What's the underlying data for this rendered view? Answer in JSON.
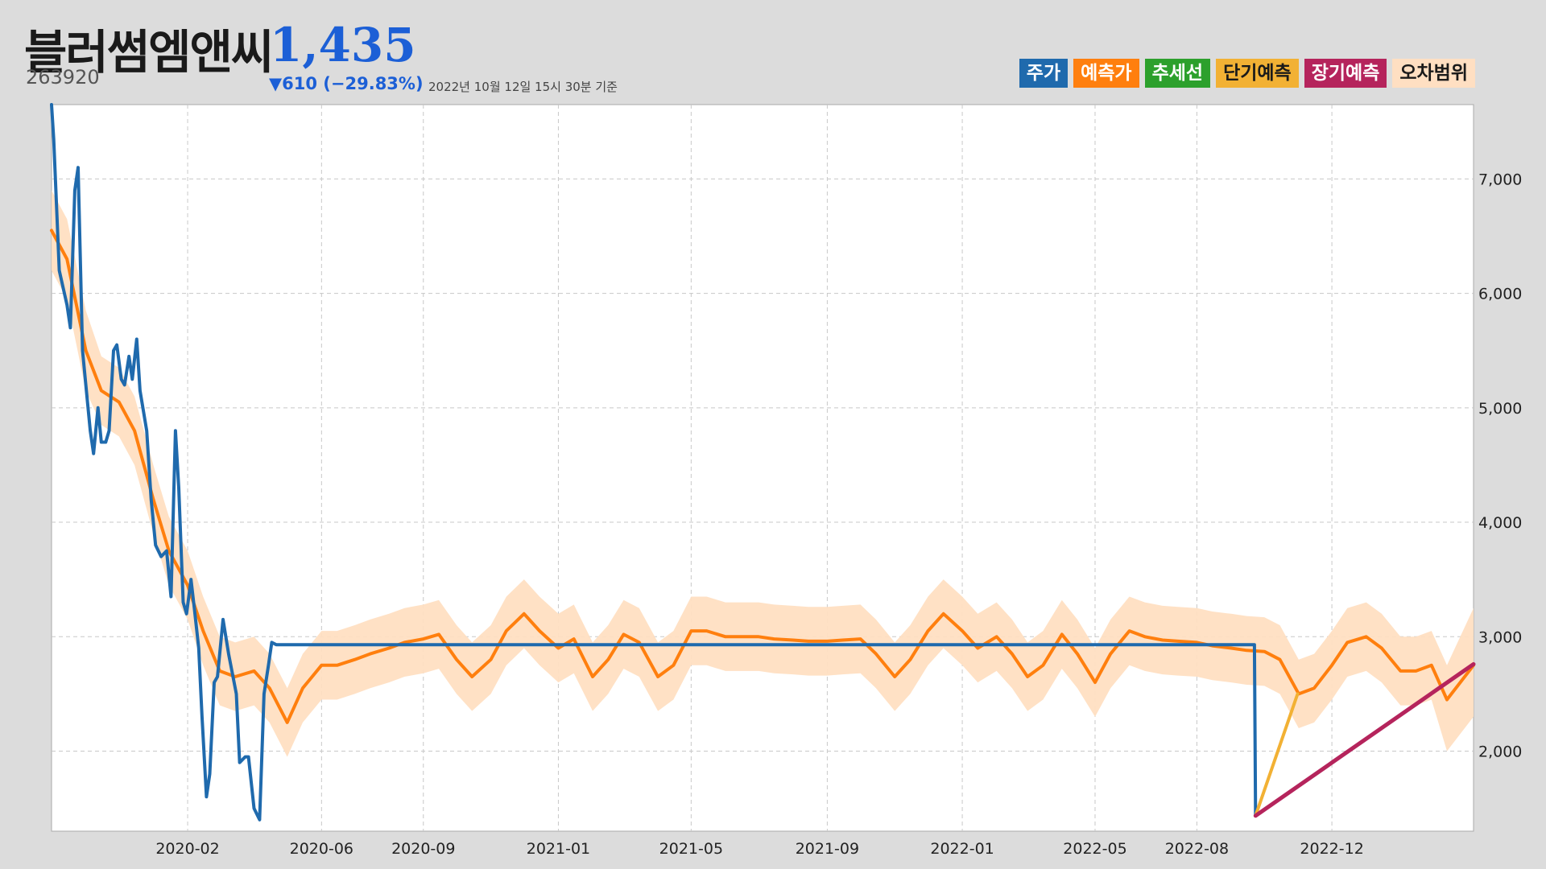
{
  "header": {
    "name": "블러썸엠앤씨",
    "price": "1,435",
    "code": "263920",
    "change": "▼610 (−29.83%)",
    "asof": "2022년 10월 12일 15시 30분 기준"
  },
  "legend": [
    {
      "label": "주가",
      "color": "#1f6aad",
      "text_color": "#ffffff"
    },
    {
      "label": "예측가",
      "color": "#ff7f0e",
      "text_color": "#ffffff"
    },
    {
      "label": "추세선",
      "color": "#2ca02c",
      "text_color": "#ffffff"
    },
    {
      "label": "단기예측",
      "color": "#f2b134",
      "text_color": "#1a1a1a"
    },
    {
      "label": "장기예측",
      "color": "#b5245c",
      "text_color": "#ffffff"
    },
    {
      "label": "오차범위",
      "color": "#ffdfc2",
      "text_color": "#1a1a1a"
    }
  ],
  "chart_data": {
    "type": "line",
    "x_ticks": [
      "2020-02",
      "2020-06",
      "2020-09",
      "2021-01",
      "2021-05",
      "2021-09",
      "2022-01",
      "2022-05",
      "2022-08",
      "2022-12"
    ],
    "y_ticks": [
      "2,000",
      "3,000",
      "4,000",
      "5,000",
      "6,000",
      "7,000"
    ],
    "y_tick_values": [
      2000,
      3000,
      4000,
      5000,
      6000,
      7000
    ],
    "ylim": [
      1300,
      7650
    ],
    "xlim": [
      "2019-10-01",
      "2023-04-08"
    ],
    "grid": true,
    "series": [
      {
        "name": "주가",
        "color": "#1f6aad",
        "x": [
          "2019-10-01",
          "2019-10-03",
          "2019-10-08",
          "2019-10-15",
          "2019-10-18",
          "2019-10-22",
          "2019-10-25",
          "2019-10-29",
          "2019-11-01",
          "2019-11-05",
          "2019-11-08",
          "2019-11-12",
          "2019-11-15",
          "2019-11-19",
          "2019-11-22",
          "2019-11-26",
          "2019-11-29",
          "2019-12-03",
          "2019-12-06",
          "2019-12-10",
          "2019-12-13",
          "2019-12-17",
          "2019-12-20",
          "2019-12-26",
          "2019-12-30",
          "2020-01-03",
          "2020-01-08",
          "2020-01-13",
          "2020-01-17",
          "2020-01-21",
          "2020-01-24",
          "2020-01-28",
          "2020-01-31",
          "2020-02-04",
          "2020-02-07",
          "2020-02-11",
          "2020-02-14",
          "2020-02-18",
          "2020-02-21",
          "2020-02-25",
          "2020-02-28",
          "2020-03-04",
          "2020-03-09",
          "2020-03-12",
          "2020-03-16",
          "2020-03-19",
          "2020-03-24",
          "2020-03-27",
          "2020-04-01",
          "2020-04-06",
          "2020-04-10",
          "2020-04-14",
          "2020-04-17",
          "2020-04-21",
          "2020-04-24",
          "2020-04-28",
          "2020-05-04",
          "2020-05-08",
          "2020-05-13",
          "2020-05-18",
          "2020-05-21",
          "2020-05-26",
          "2020-05-28",
          "2022-09-22",
          "2022-09-23"
        ],
        "y": [
          7650,
          7350,
          6200,
          5900,
          5700,
          6900,
          7100,
          5500,
          5200,
          4800,
          4600,
          5000,
          4700,
          4700,
          4800,
          5500,
          5550,
          5250,
          5200,
          5450,
          5250,
          5600,
          5150,
          4800,
          4200,
          3800,
          3700,
          3750,
          3350,
          4800,
          4300,
          3300,
          3200,
          3500,
          3250,
          2900,
          2300,
          1600,
          1800,
          2600,
          2650,
          3150,
          2850,
          2700,
          2500,
          1900,
          1950,
          1950,
          1500,
          1400,
          2500,
          2750,
          2950,
          2930,
          2930,
          2930,
          2930,
          2930,
          2930,
          2930,
          2930,
          2930,
          2930,
          2930,
          1435
        ]
      },
      {
        "name": "예측가",
        "color": "#ff7f0e",
        "x": [
          "2019-10-01",
          "2019-10-15",
          "2019-11-01",
          "2019-11-15",
          "2019-12-01",
          "2019-12-15",
          "2020-01-01",
          "2020-01-15",
          "2020-02-01",
          "2020-02-15",
          "2020-03-01",
          "2020-03-15",
          "2020-04-01",
          "2020-04-15",
          "2020-05-01",
          "2020-05-15",
          "2020-06-01",
          "2020-06-15",
          "2020-07-01",
          "2020-07-15",
          "2020-08-01",
          "2020-08-15",
          "2020-09-01",
          "2020-09-15",
          "2020-10-01",
          "2020-10-15",
          "2020-11-01",
          "2020-11-15",
          "2020-12-01",
          "2020-12-15",
          "2021-01-01",
          "2021-01-15",
          "2021-02-01",
          "2021-02-15",
          "2021-03-01",
          "2021-03-15",
          "2021-04-01",
          "2021-04-15",
          "2021-05-01",
          "2021-05-15",
          "2021-06-01",
          "2021-06-15",
          "2021-07-01",
          "2021-07-15",
          "2021-08-01",
          "2021-08-15",
          "2021-09-01",
          "2021-09-15",
          "2021-10-01",
          "2021-10-15",
          "2021-11-01",
          "2021-11-15",
          "2021-12-01",
          "2021-12-15",
          "2022-01-01",
          "2022-01-15",
          "2022-02-01",
          "2022-02-15",
          "2022-03-01",
          "2022-03-15",
          "2022-04-01",
          "2022-04-15",
          "2022-05-01",
          "2022-05-15",
          "2022-06-01",
          "2022-06-15",
          "2022-07-01",
          "2022-07-15",
          "2022-08-01",
          "2022-08-15",
          "2022-09-01",
          "2022-09-15",
          "2022-10-01",
          "2022-10-15",
          "2022-11-01",
          "2022-11-15",
          "2022-12-01",
          "2022-12-15",
          "2023-01-01",
          "2023-01-15",
          "2023-02-01",
          "2023-02-15",
          "2023-03-01",
          "2023-03-15",
          "2023-04-08"
        ],
        "y": [
          6550,
          6300,
          5500,
          5150,
          5050,
          4800,
          4200,
          3750,
          3450,
          3050,
          2700,
          2650,
          2700,
          2550,
          2250,
          2550,
          2750,
          2750,
          2800,
          2850,
          2900,
          2950,
          2980,
          3020,
          2800,
          2650,
          2800,
          3050,
          3200,
          3050,
          2900,
          2980,
          2650,
          2800,
          3020,
          2950,
          2650,
          2750,
          3050,
          3050,
          3000,
          3000,
          3000,
          2980,
          2970,
          2960,
          2960,
          2970,
          2980,
          2850,
          2650,
          2800,
          3050,
          3200,
          3050,
          2900,
          3000,
          2850,
          2650,
          2750,
          3020,
          2850,
          2600,
          2850,
          3050,
          3000,
          2970,
          2960,
          2950,
          2920,
          2900,
          2880,
          2870,
          2800,
          2500,
          2550,
          2750,
          2950,
          3000,
          2900,
          2700,
          2700,
          2750,
          2450,
          2750
        ]
      },
      {
        "name": "단기예측",
        "color": "#f2b134",
        "x": [
          "2022-09-23",
          "2022-10-31"
        ],
        "y": [
          1435,
          2500
        ]
      },
      {
        "name": "장기예측",
        "color": "#b5245c",
        "x": [
          "2022-09-23",
          "2023-04-08"
        ],
        "y": [
          1435,
          2760
        ]
      }
    ],
    "band": {
      "name": "오차범위",
      "color": "#ffdfc2",
      "x": [
        "2019-10-01",
        "2019-10-15",
        "2019-11-01",
        "2019-11-15",
        "2019-12-01",
        "2019-12-15",
        "2020-01-01",
        "2020-01-15",
        "2020-02-01",
        "2020-02-15",
        "2020-03-01",
        "2020-03-15",
        "2020-04-01",
        "2020-04-15",
        "2020-05-01",
        "2020-05-15",
        "2020-06-01",
        "2020-06-15",
        "2020-07-01",
        "2020-07-15",
        "2020-08-01",
        "2020-08-15",
        "2020-09-01",
        "2020-09-15",
        "2020-10-01",
        "2020-10-15",
        "2020-11-01",
        "2020-11-15",
        "2020-12-01",
        "2020-12-15",
        "2021-01-01",
        "2021-01-15",
        "2021-02-01",
        "2021-02-15",
        "2021-03-01",
        "2021-03-15",
        "2021-04-01",
        "2021-04-15",
        "2021-05-01",
        "2021-05-15",
        "2021-06-01",
        "2021-06-15",
        "2021-07-01",
        "2021-07-15",
        "2021-08-01",
        "2021-08-15",
        "2021-09-01",
        "2021-09-15",
        "2021-10-01",
        "2021-10-15",
        "2021-11-01",
        "2021-11-15",
        "2021-12-01",
        "2021-12-15",
        "2022-01-01",
        "2022-01-15",
        "2022-02-01",
        "2022-02-15",
        "2022-03-01",
        "2022-03-15",
        "2022-04-01",
        "2022-04-15",
        "2022-05-01",
        "2022-05-15",
        "2022-06-01",
        "2022-06-15",
        "2022-07-01",
        "2022-07-15",
        "2022-08-01",
        "2022-08-15",
        "2022-09-01",
        "2022-09-15",
        "2022-10-01",
        "2022-10-15",
        "2022-11-01",
        "2022-11-15",
        "2022-12-01",
        "2022-12-15",
        "2023-01-01",
        "2023-01-15",
        "2023-02-01",
        "2023-02-15",
        "2023-03-01",
        "2023-03-15",
        "2023-04-08"
      ],
      "upper": [
        6900,
        6650,
        5850,
        5450,
        5350,
        5100,
        4500,
        4050,
        3750,
        3350,
        3000,
        2950,
        3000,
        2850,
        2550,
        2850,
        3050,
        3050,
        3100,
        3150,
        3200,
        3250,
        3280,
        3320,
        3100,
        2950,
        3100,
        3350,
        3500,
        3350,
        3200,
        3280,
        2950,
        3100,
        3320,
        3250,
        2950,
        3050,
        3350,
        3350,
        3300,
        3300,
        3300,
        3280,
        3270,
        3260,
        3260,
        3270,
        3280,
        3150,
        2950,
        3100,
        3350,
        3500,
        3350,
        3200,
        3300,
        3150,
        2950,
        3050,
        3320,
        3150,
        2900,
        3150,
        3350,
        3300,
        3270,
        3260,
        3250,
        3220,
        3200,
        3180,
        3170,
        3100,
        2800,
        2850,
        3050,
        3250,
        3300,
        3200,
        3000,
        3000,
        3050,
        2750,
        3250
      ],
      "lower": [
        6200,
        5950,
        5150,
        4850,
        4750,
        4500,
        3900,
        3450,
        3150,
        2750,
        2400,
        2350,
        2400,
        2250,
        1950,
        2250,
        2450,
        2450,
        2500,
        2550,
        2600,
        2650,
        2680,
        2720,
        2500,
        2350,
        2500,
        2750,
        2900,
        2750,
        2600,
        2680,
        2350,
        2500,
        2720,
        2650,
        2350,
        2450,
        2750,
        2750,
        2700,
        2700,
        2700,
        2680,
        2670,
        2660,
        2660,
        2670,
        2680,
        2550,
        2350,
        2500,
        2750,
        2900,
        2750,
        2600,
        2700,
        2550,
        2350,
        2450,
        2720,
        2550,
        2300,
        2550,
        2750,
        2700,
        2670,
        2660,
        2650,
        2620,
        2600,
        2580,
        2570,
        2500,
        2200,
        2250,
        2450,
        2650,
        2700,
        2600,
        2400,
        2400,
        2450,
        2000,
        2300
      ]
    }
  }
}
